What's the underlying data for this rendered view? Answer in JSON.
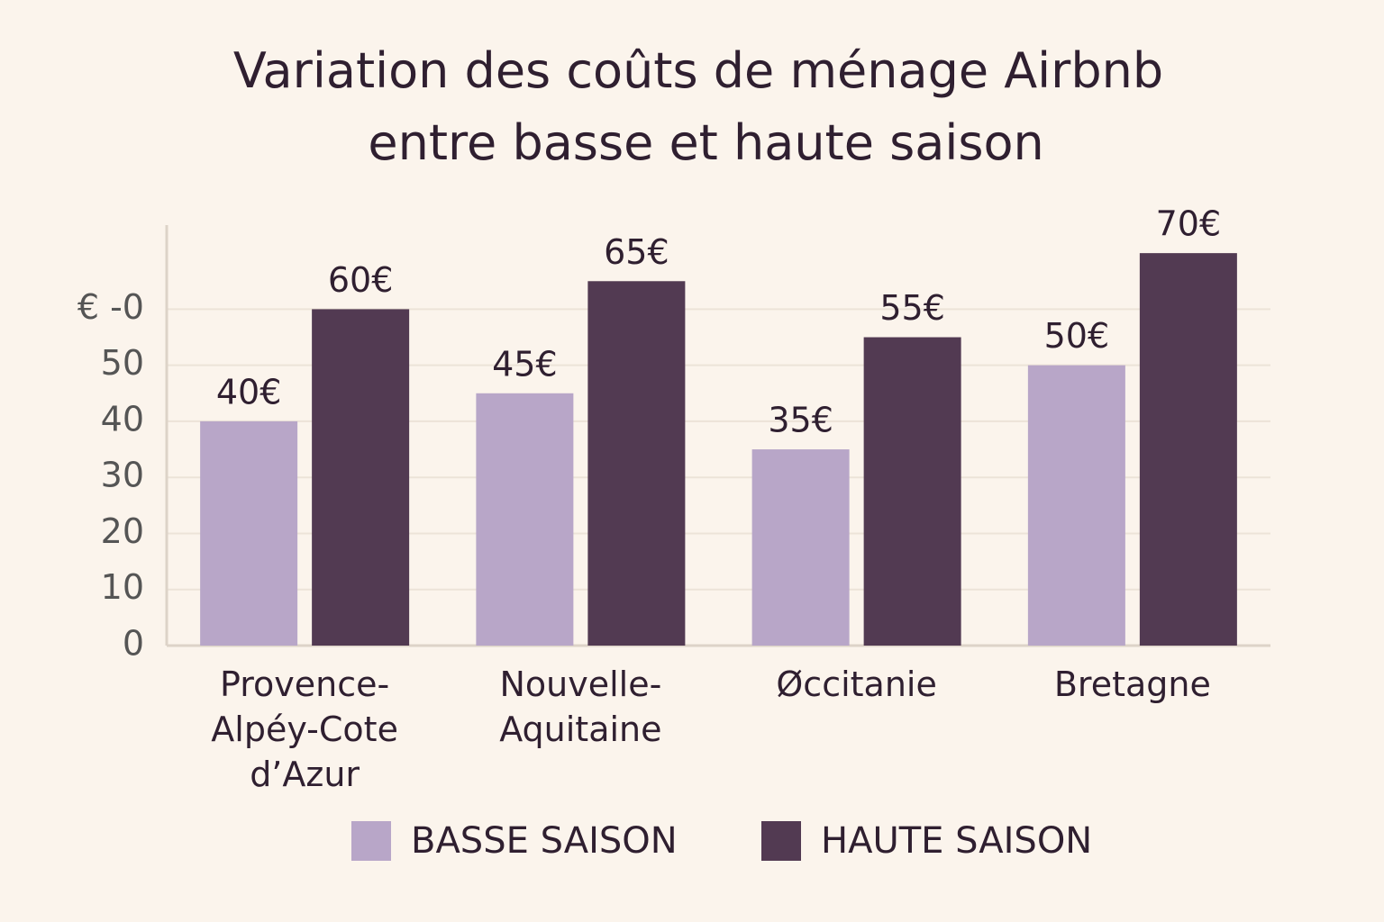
{
  "chart_data": {
    "type": "bar",
    "title": "Variation des coûts de ménage Airbnb entre basse et haute saison",
    "categories": [
      "Provence-\nAlpéy-Cote\nd’Azur",
      "Nouvelle-\nAquitaine",
      "Øccitanie",
      "Bretagne"
    ],
    "series": [
      {
        "name": "BASSE SAISON",
        "color": "#b8a6c8",
        "values": [
          40,
          45,
          35,
          50
        ],
        "value_labels": [
          "40€",
          "45€",
          "35€",
          "50€"
        ]
      },
      {
        "name": "HAUTE SAISON",
        "color": "#523a52",
        "values": [
          60,
          65,
          55,
          70
        ],
        "value_labels": [
          "60€",
          "65€",
          "55€",
          "70€"
        ]
      }
    ],
    "ylim": [
      0,
      75
    ],
    "yticks": [
      0,
      10,
      20,
      30,
      40,
      50,
      {
        "value": 60,
        "label": "€ -0"
      }
    ],
    "grid": true
  }
}
